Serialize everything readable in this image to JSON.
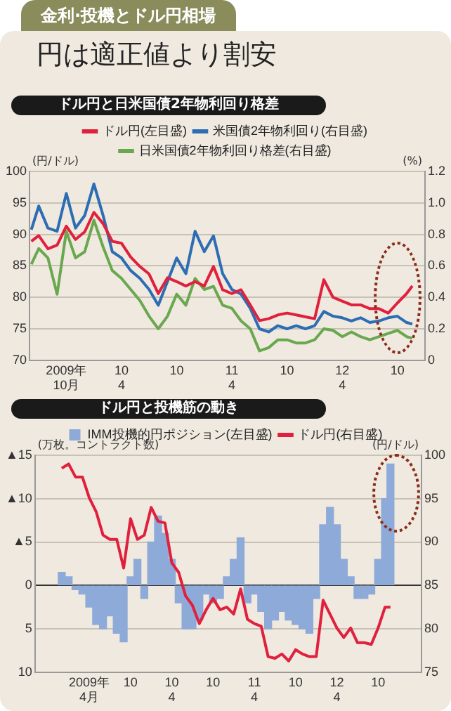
{
  "chart_data": [
    {
      "type": "line",
      "title": "ドル円と日米国債2年物利回り格差",
      "annotations": [
        "金利·投機とドル円相場",
        "円は適正値より割安"
      ],
      "ylabel": "(円/ドル)",
      "y2label": "(%)",
      "x": [
        "2009-06-07",
        "2009-07",
        "2009-08",
        "2009-09",
        "2009-10",
        "2009-11",
        "2009-12",
        "2010-01",
        "2010-02",
        "2010-03",
        "2010-04",
        "2010-05",
        "2010-06",
        "2010-07",
        "2010-08",
        "2010-09",
        "2010-10",
        "2010-11",
        "2010-12",
        "2011-01",
        "2011-02",
        "2011-03",
        "2011-04",
        "2011-05",
        "2011-06",
        "2011-07",
        "2011-08",
        "2011-09",
        "2011-10",
        "2011-11",
        "2011-12",
        "2012-01",
        "2012-02",
        "2012-03",
        "2012-04",
        "2012-05",
        "2012-06",
        "2012-07",
        "2012-08",
        "2012-09",
        "2012-10",
        "2012-11",
        "2012-11-20"
      ],
      "series": [
        {
          "name": "ドル円(左目盛)",
          "color": "#e0203c",
          "values": [
            88.9,
            89.8,
            87.7,
            88.3,
            91.3,
            89.2,
            90.4,
            93.5,
            91.7,
            88.9,
            88.6,
            86.4,
            84.9,
            83.7,
            80.6,
            83.1,
            82.5,
            81.8,
            82.5,
            81.8,
            84.9,
            81.2,
            80.6,
            81.2,
            78.8,
            76.3,
            76.6,
            77.2,
            77.5,
            77.2,
            76.9,
            76.6,
            82.8,
            80.0,
            79.4,
            78.8,
            78.8,
            78.2,
            78.2,
            77.5,
            79.1,
            80.6,
            81.8
          ]
        },
        {
          "name": "米国債2年物利回り(右目盛)",
          "color": "#2c6db3",
          "axis": "y2",
          "values": [
            0.83,
            0.98,
            0.84,
            0.82,
            1.06,
            0.84,
            0.92,
            1.12,
            0.92,
            0.69,
            0.65,
            0.57,
            0.52,
            0.45,
            0.35,
            0.5,
            0.65,
            0.55,
            0.82,
            0.69,
            0.79,
            0.55,
            0.45,
            0.42,
            0.33,
            0.2,
            0.18,
            0.22,
            0.2,
            0.22,
            0.2,
            0.22,
            0.31,
            0.28,
            0.27,
            0.25,
            0.27,
            0.24,
            0.25,
            0.27,
            0.28,
            0.24,
            0.23
          ]
        },
        {
          "name": "日米国債2年物利回り格差(右目盛)",
          "color": "#6aa84f",
          "axis": "y2",
          "values": [
            0.61,
            0.71,
            0.65,
            0.42,
            0.82,
            0.65,
            0.69,
            0.89,
            0.72,
            0.57,
            0.52,
            0.45,
            0.38,
            0.28,
            0.2,
            0.28,
            0.42,
            0.35,
            0.52,
            0.45,
            0.47,
            0.35,
            0.33,
            0.25,
            0.2,
            0.06,
            0.08,
            0.13,
            0.13,
            0.11,
            0.11,
            0.13,
            0.2,
            0.19,
            0.15,
            0.18,
            0.15,
            0.13,
            0.15,
            0.17,
            0.19,
            0.15,
            0.14
          ]
        }
      ],
      "xlim": [
        "2009-06",
        "2013-01"
      ],
      "xticks": [
        {
          "value": "2009-10",
          "label": "2009年\n10月"
        },
        {
          "value": "2010-04",
          "label": "10\n4"
        },
        {
          "value": "2010-10",
          "label": "10"
        },
        {
          "value": "2011-04",
          "label": "11\n4"
        },
        {
          "value": "2011-10",
          "label": "10"
        },
        {
          "value": "2012-04",
          "label": "12\n4"
        },
        {
          "value": "2012-10",
          "label": "10"
        }
      ],
      "ylim": [
        70,
        100
      ],
      "yticks": [
        70,
        75,
        80,
        85,
        90,
        95,
        100
      ],
      "y2lim": [
        0,
        1.2
      ],
      "y2ticks": [
        0,
        0.2,
        0.4,
        0.6,
        0.8,
        {
          "value": 1,
          "label": "1.0"
        },
        1.2
      ],
      "grid": "y",
      "legend": "top",
      "marker": "none",
      "line_style": "solid"
    },
    {
      "type": "bar",
      "title": "ドル円と投機筋の動き",
      "ylabel": "(万枚。コントラクト数)",
      "y2label": "(円/ドル)",
      "x": [
        "2008-12",
        "2009-01",
        "2009-02",
        "2009-03",
        "2009-04",
        "2009-05",
        "2009-06",
        "2009-07",
        "2009-08",
        "2009-09",
        "2009-10",
        "2009-11",
        "2009-12",
        "2010-01",
        "2010-02",
        "2010-03",
        "2010-04",
        "2010-05",
        "2010-06",
        "2010-07",
        "2010-08",
        "2010-09",
        "2010-10",
        "2010-11",
        "2010-12",
        "2011-01",
        "2011-02",
        "2011-03",
        "2011-04",
        "2011-05",
        "2011-06",
        "2011-07",
        "2011-08",
        "2011-09",
        "2011-10",
        "2011-11",
        "2011-12",
        "2012-01",
        "2012-02",
        "2012-03",
        "2012-04",
        "2012-05",
        "2012-06",
        "2012-07",
        "2012-08",
        "2012-09",
        "2012-10",
        "2012-11",
        "2012-11-25"
      ],
      "series": [
        {
          "name": "IMM投機的円ポジション(左目盛)",
          "color": "#8eaad8",
          "values": [
            -1.5,
            -1,
            0.5,
            1,
            2.5,
            4.5,
            5,
            3.5,
            5.5,
            6.5,
            -1,
            -3,
            1.5,
            -5,
            -8,
            -6,
            -3,
            2,
            5,
            5,
            4,
            1,
            2,
            1.5,
            -1,
            -3,
            -5.5,
            2,
            1,
            3,
            5,
            4,
            3,
            4,
            4.5,
            5,
            5.5,
            1.5,
            -7,
            -9,
            -7,
            -3,
            -1,
            1.5,
            1.5,
            1,
            -3,
            -10,
            -14
          ]
        },
        {
          "name": "ドル円(右目盛)",
          "color": "#e0203c",
          "type": "line",
          "axis": "y2",
          "values": [
            98.5,
            99,
            97.5,
            97.5,
            95.1,
            93.5,
            90.8,
            90.3,
            90.3,
            87,
            92.7,
            90.3,
            90.8,
            94,
            92.4,
            92.2,
            87.6,
            86.5,
            83.8,
            82.7,
            80.6,
            82.2,
            83.5,
            82.2,
            82.5,
            81.7,
            84.6,
            81.1,
            80.6,
            80.3,
            76.8,
            76.6,
            77.1,
            76.3,
            77.6,
            77.1,
            76.8,
            76.8,
            83.3,
            81.7,
            80.1,
            79,
            80.1,
            78.4,
            78.4,
            78.2,
            80.1,
            82.5,
            82.5
          ]
        }
      ],
      "xlim": [
        "2008-11-20",
        "2012-12-25"
      ],
      "xticks": [
        {
          "value": "2009-04",
          "label": "2009年\n4月"
        },
        {
          "value": "2009-10",
          "label": "10"
        },
        {
          "value": "2010-04",
          "label": "10\n4"
        },
        {
          "value": "2010-10",
          "label": "10"
        },
        {
          "value": "2011-04",
          "label": "11\n4"
        },
        {
          "value": "2011-10",
          "label": "10"
        },
        {
          "value": "2012-04",
          "label": "12\n4"
        },
        {
          "value": "2012-10",
          "label": "10"
        }
      ],
      "ylim": [
        10,
        -15
      ],
      "yticks": [
        {
          "value": -15,
          "label": "▲15"
        },
        {
          "value": -10,
          "label": "▲10"
        },
        {
          "value": -5,
          "label": "▲5"
        },
        0,
        5,
        10
      ],
      "y2lim": [
        75,
        100
      ],
      "y2ticks": [
        75,
        80,
        85,
        90,
        95,
        100
      ],
      "grid": "y",
      "legend": "top",
      "marker": "none",
      "line_style": "solid"
    }
  ]
}
